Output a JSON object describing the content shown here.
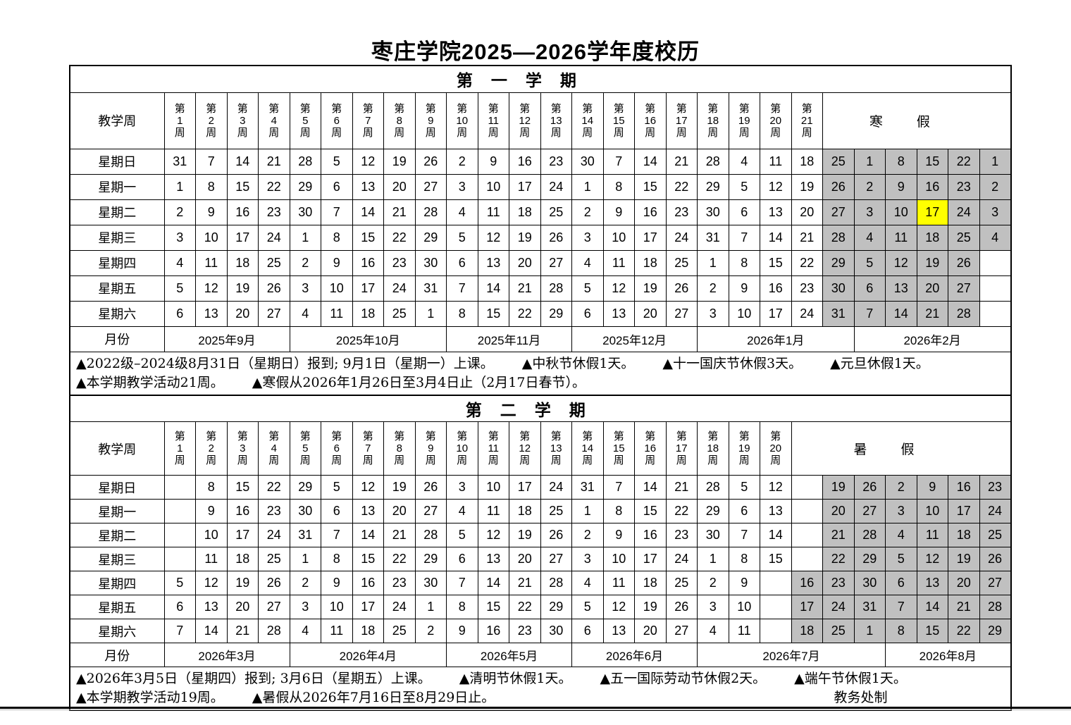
{
  "title": "枣庄学院2025—2026学年度校历",
  "labels": {
    "teaching_week": "教学周",
    "month_row": "月份",
    "week_char_top": "第",
    "week_char_bottom": "周"
  },
  "credit": "教务处制",
  "colors": {
    "vacation_gray": "#c0c0c0",
    "highlight_yellow": "#ffff00",
    "border": "#000000"
  },
  "semesters": [
    {
      "title": "第一学期",
      "vacation_label": "寒假",
      "week_numbers": [
        "1",
        "2",
        "3",
        "4",
        "5",
        "6",
        "7",
        "8",
        "9",
        "10",
        "11",
        "12",
        "13",
        "14",
        "15",
        "16",
        "17",
        "18",
        "19",
        "20",
        "21"
      ],
      "rows": [
        {
          "day": "星期日",
          "weeks": [
            "31",
            "7",
            "14",
            "21",
            "28",
            "5",
            "12",
            "19",
            "26",
            "2",
            "9",
            "16",
            "23",
            "30",
            "7",
            "14",
            "21",
            "28",
            "4",
            "11",
            "18"
          ],
          "vacation": [
            "25",
            "1",
            "8",
            "15",
            "22",
            "1"
          ]
        },
        {
          "day": "星期一",
          "weeks": [
            "1",
            "8",
            "15",
            "22",
            "29",
            "6",
            "13",
            "20",
            "27",
            "3",
            "10",
            "17",
            "24",
            "1",
            "8",
            "15",
            "22",
            "29",
            "5",
            "12",
            "19"
          ],
          "vacation": [
            "26",
            "2",
            "9",
            "16",
            "23",
            "2"
          ]
        },
        {
          "day": "星期二",
          "weeks": [
            "2",
            "9",
            "16",
            "23",
            "30",
            "7",
            "14",
            "21",
            "28",
            "4",
            "11",
            "18",
            "25",
            "2",
            "9",
            "16",
            "23",
            "30",
            "6",
            "13",
            "20"
          ],
          "vacation": [
            "27",
            "3",
            "10",
            "17",
            "24",
            "3"
          ]
        },
        {
          "day": "星期三",
          "weeks": [
            "3",
            "10",
            "17",
            "24",
            "1",
            "8",
            "15",
            "22",
            "29",
            "5",
            "12",
            "19",
            "26",
            "3",
            "10",
            "17",
            "24",
            "31",
            "7",
            "14",
            "21"
          ],
          "vacation": [
            "28",
            "4",
            "11",
            "18",
            "25",
            "4"
          ]
        },
        {
          "day": "星期四",
          "weeks": [
            "4",
            "11",
            "18",
            "25",
            "2",
            "9",
            "16",
            "23",
            "30",
            "6",
            "13",
            "20",
            "27",
            "4",
            "11",
            "18",
            "25",
            "1",
            "8",
            "15",
            "22"
          ],
          "vacation": [
            "29",
            "5",
            "12",
            "19",
            "26",
            ""
          ]
        },
        {
          "day": "星期五",
          "weeks": [
            "5",
            "12",
            "19",
            "26",
            "3",
            "10",
            "17",
            "24",
            "31",
            "7",
            "14",
            "21",
            "28",
            "5",
            "12",
            "19",
            "26",
            "2",
            "9",
            "16",
            "23"
          ],
          "vacation": [
            "30",
            "6",
            "13",
            "20",
            "27",
            ""
          ]
        },
        {
          "day": "星期六",
          "weeks": [
            "6",
            "13",
            "20",
            "27",
            "4",
            "11",
            "18",
            "25",
            "1",
            "8",
            "15",
            "22",
            "29",
            "6",
            "13",
            "20",
            "27",
            "3",
            "10",
            "17",
            "24"
          ],
          "vacation": [
            "31",
            "7",
            "14",
            "21",
            "28",
            ""
          ]
        }
      ],
      "highlight": {
        "row_index": 2,
        "vacation_index": 3
      },
      "months": [
        {
          "label": "2025年9月",
          "span": 4
        },
        {
          "label": "2025年10月",
          "span": 5
        },
        {
          "label": "2025年11月",
          "span": 4
        },
        {
          "label": "2025年12月",
          "span": 4
        },
        {
          "label": "2026年1月",
          "span": 5
        },
        {
          "label": "2026年2月",
          "span": 5
        }
      ],
      "notes": [
        [
          "▲2022级–2024级8月31日（星期日）报到; 9月1日（星期一）上课。",
          "▲中秋节休假1天。",
          "▲十一国庆节休假3天。",
          "▲元旦休假1天。"
        ],
        [
          "▲本学期教学活动21周。",
          "▲寒假从2026年1月26日至3月4日止（2月17日春节）。"
        ]
      ],
      "credit_on_line2": false
    },
    {
      "title": "第二学期",
      "vacation_label": "暑假",
      "week_numbers": [
        "1",
        "2",
        "3",
        "4",
        "5",
        "6",
        "7",
        "8",
        "9",
        "10",
        "11",
        "12",
        "13",
        "14",
        "15",
        "16",
        "17",
        "18",
        "19",
        "20"
      ],
      "rows": [
        {
          "day": "星期日",
          "weeks": [
            "",
            "8",
            "15",
            "22",
            "29",
            "5",
            "12",
            "19",
            "26",
            "3",
            "10",
            "17",
            "24",
            "31",
            "7",
            "14",
            "21",
            "28",
            "5",
            "12"
          ],
          "vacation": [
            "",
            "19",
            "26",
            "2",
            "9",
            "16",
            "23"
          ]
        },
        {
          "day": "星期一",
          "weeks": [
            "",
            "9",
            "16",
            "23",
            "30",
            "6",
            "13",
            "20",
            "27",
            "4",
            "11",
            "18",
            "25",
            "1",
            "8",
            "15",
            "22",
            "29",
            "6",
            "13"
          ],
          "vacation": [
            "",
            "20",
            "27",
            "3",
            "10",
            "17",
            "24"
          ]
        },
        {
          "day": "星期二",
          "weeks": [
            "",
            "10",
            "17",
            "24",
            "31",
            "7",
            "14",
            "21",
            "28",
            "5",
            "12",
            "19",
            "26",
            "2",
            "9",
            "16",
            "23",
            "30",
            "7",
            "14"
          ],
          "vacation": [
            "",
            "21",
            "28",
            "4",
            "11",
            "18",
            "25"
          ]
        },
        {
          "day": "星期三",
          "weeks": [
            "",
            "11",
            "18",
            "25",
            "1",
            "8",
            "15",
            "22",
            "29",
            "6",
            "13",
            "20",
            "27",
            "3",
            "10",
            "17",
            "24",
            "1",
            "8",
            "15"
          ],
          "vacation": [
            "",
            "22",
            "29",
            "5",
            "12",
            "19",
            "26"
          ]
        },
        {
          "day": "星期四",
          "weeks": [
            "5",
            "12",
            "19",
            "26",
            "2",
            "9",
            "16",
            "23",
            "30",
            "7",
            "14",
            "21",
            "28",
            "4",
            "11",
            "18",
            "25",
            "2",
            "9",
            ""
          ],
          "vacation": [
            "16",
            "23",
            "30",
            "6",
            "13",
            "20",
            "27"
          ]
        },
        {
          "day": "星期五",
          "weeks": [
            "6",
            "13",
            "20",
            "27",
            "3",
            "10",
            "17",
            "24",
            "1",
            "8",
            "15",
            "22",
            "29",
            "5",
            "12",
            "19",
            "26",
            "3",
            "10",
            ""
          ],
          "vacation": [
            "17",
            "24",
            "31",
            "7",
            "14",
            "21",
            "28"
          ]
        },
        {
          "day": "星期六",
          "weeks": [
            "7",
            "14",
            "21",
            "28",
            "4",
            "11",
            "18",
            "25",
            "2",
            "9",
            "16",
            "23",
            "30",
            "6",
            "13",
            "20",
            "27",
            "4",
            "11",
            ""
          ],
          "vacation": [
            "18",
            "25",
            "1",
            "8",
            "15",
            "22",
            "29"
          ]
        }
      ],
      "highlight": null,
      "months": [
        {
          "label": "2026年3月",
          "span": 4
        },
        {
          "label": "2026年4月",
          "span": 5
        },
        {
          "label": "2026年5月",
          "span": 4
        },
        {
          "label": "2026年6月",
          "span": 4
        },
        {
          "label": "2026年7月",
          "span": 6
        },
        {
          "label": "2026年8月",
          "span": 4
        }
      ],
      "notes": [
        [
          "▲2026年3月5日（星期四）报到; 3月6日（星期五）上课。",
          "▲清明节休假1天。",
          "▲五一国际劳动节休假2天。",
          "▲端午节休假1天。"
        ],
        [
          "▲本学期教学活动19周。",
          "▲暑假从2026年7月16日至8月29日止。"
        ]
      ],
      "credit_on_line2": true
    }
  ]
}
